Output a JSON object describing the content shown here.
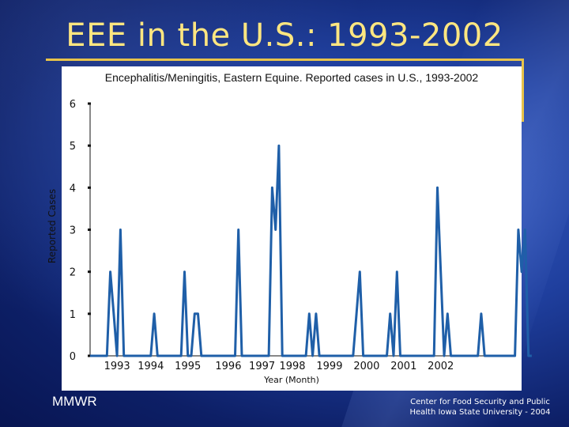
{
  "slide": {
    "title": "EEE in the U.S.: 1993-2002",
    "footer_left": "MMWR",
    "footer_right_line1": "Center for Food Security and Public",
    "footer_right_line2": "Health   Iowa State University - 2004"
  },
  "colors": {
    "line": "#1f5fa8",
    "title": "#ffe680",
    "accent": "#e8c34a"
  },
  "chart_data": {
    "type": "line",
    "title": "Encephalitis/Meningitis, Eastern Equine. Reported cases in U.S., 1993-2002",
    "xlabel": "Year (Month)",
    "ylabel": "Reported Cases",
    "ylim": [
      0,
      6
    ],
    "yticks": [
      0,
      1,
      2,
      3,
      4,
      5,
      6
    ],
    "xlim": [
      0,
      120
    ],
    "xtick_labels": [
      {
        "label": "1993",
        "x": 8
      },
      {
        "label": "1994",
        "x": 18
      },
      {
        "label": "1995",
        "x": 29
      },
      {
        "label": "1996",
        "x": 41
      },
      {
        "label": "1997",
        "x": 51
      },
      {
        "label": "1998",
        "x": 60
      },
      {
        "label": "1999",
        "x": 71
      },
      {
        "label": "2000",
        "x": 82
      },
      {
        "label": "2001",
        "x": 93
      },
      {
        "label": "2002",
        "x": 104
      }
    ],
    "grid": false,
    "legend": "none",
    "series": [
      {
        "values": [
          0,
          0,
          0,
          0,
          0,
          0,
          2,
          1,
          0,
          3,
          0,
          0,
          0,
          0,
          0,
          0,
          0,
          0,
          0,
          1,
          0,
          0,
          0,
          0,
          0,
          0,
          0,
          0,
          2,
          0,
          0,
          1,
          1,
          0,
          0,
          0,
          0,
          0,
          0,
          0,
          0,
          0,
          0,
          0,
          3,
          0,
          0,
          0,
          0,
          0,
          0,
          0,
          0,
          0,
          4,
          3,
          5,
          0,
          0,
          0,
          0,
          0,
          0,
          0,
          0,
          1,
          0,
          1,
          0,
          0,
          0,
          0,
          0,
          0,
          0,
          0,
          0,
          0,
          0,
          1,
          2,
          0,
          0,
          0,
          0,
          0,
          0,
          0,
          0,
          1,
          0,
          2,
          0,
          0,
          0,
          0,
          0,
          0,
          0,
          0,
          0,
          0,
          0,
          4,
          2,
          0,
          1,
          0,
          0,
          0,
          0,
          0,
          0,
          0,
          0,
          0,
          1,
          0,
          0,
          0,
          0,
          0,
          0,
          0,
          0,
          0,
          0,
          3,
          2,
          3,
          0,
          0
        ]
      }
    ]
  }
}
